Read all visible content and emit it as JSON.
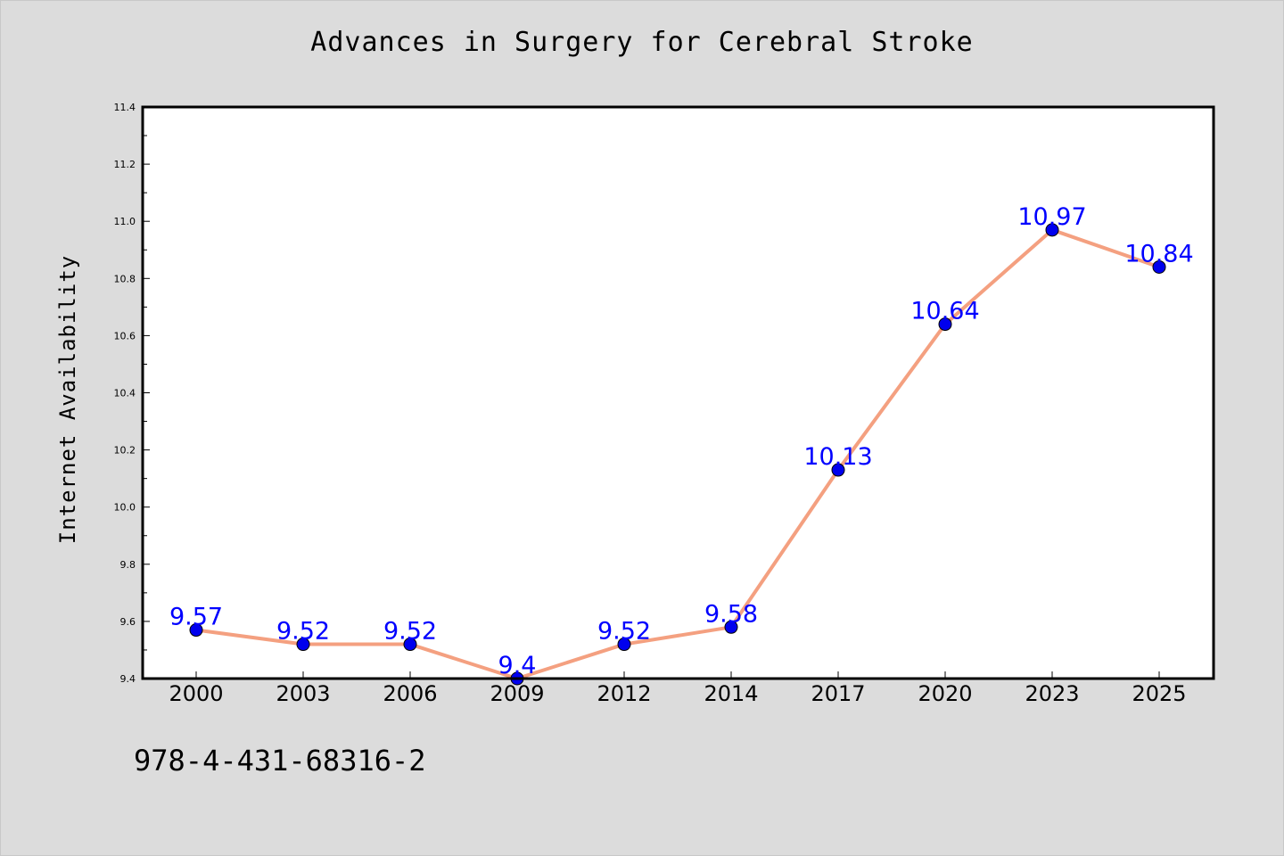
{
  "page": {
    "footer_code": "978-4-431-68316-2",
    "background_color": "#dcdcdc"
  },
  "chart_data": {
    "type": "line",
    "title": "Advances in Surgery for Cerebral Stroke",
    "xlabel": "",
    "ylabel": "Internet Availability",
    "categories": [
      "2000",
      "2003",
      "2006",
      "2009",
      "2012",
      "2014",
      "2017",
      "2020",
      "2023",
      "2025"
    ],
    "series": [
      {
        "values": [
          9.57,
          9.52,
          9.52,
          9.4,
          9.52,
          9.58,
          10.13,
          10.64,
          10.97,
          10.84
        ],
        "data_labels": [
          "9.57",
          "9.52",
          "9.52",
          "9.4",
          "9.52",
          "9.58",
          "10.13",
          "10.64",
          "10.97",
          "10.84"
        ],
        "line_color": "#f4a080",
        "marker_color": "#0000ee",
        "label_color": "#0000ff"
      }
    ],
    "ylim": [
      9.4,
      11.4
    ],
    "yticks": [
      "9.4",
      "9.6",
      "9.8",
      "10.0",
      "10.2",
      "10.4",
      "10.6",
      "10.8",
      "11.0",
      "11.2",
      "11.4"
    ],
    "grid": false,
    "legend": "none"
  }
}
